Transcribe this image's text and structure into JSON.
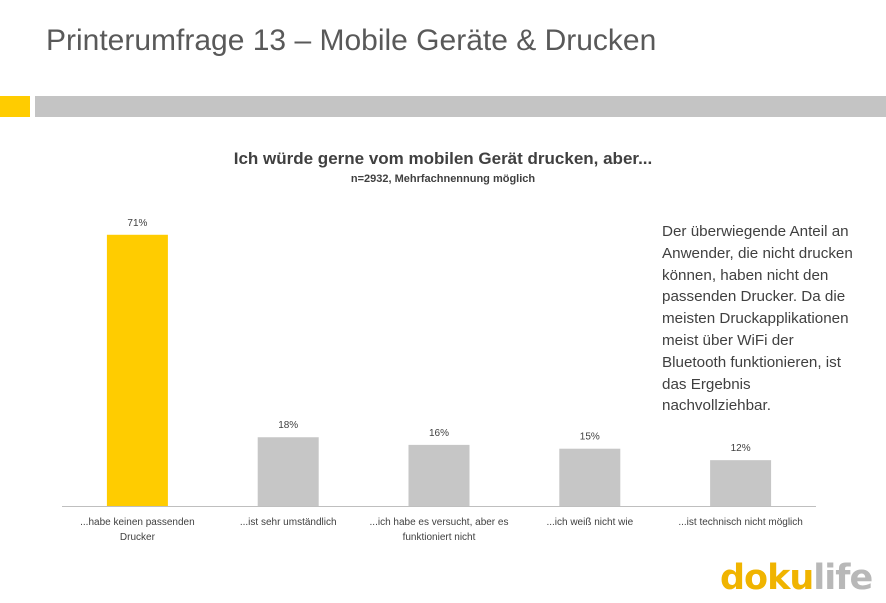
{
  "page": {
    "title": "Printerumfrage 13 – Mobile Geräte & Drucken",
    "note": "Der überwiegende Anteil an Anwender, die nicht drucken können, haben nicht den passenden Drucker. Da die meisten Druckapplikationen meist über WiFi der Bluetooth funktionieren, ist das Ergebnis nachvollziehbar.",
    "logo": {
      "part1": "doku",
      "part2": "life"
    }
  },
  "colors": {
    "accent": "#ffcc00",
    "bar_default": "#c6c6c6",
    "bar_highlight": "#ffcc00",
    "header_bar": "#c4c4c4"
  },
  "chart_data": {
    "type": "bar",
    "title": "Ich würde gerne vom mobilen Gerät drucken, aber...",
    "subtitle": "n=2932, Mehrfachnennung möglich",
    "categories": [
      [
        "...habe keinen passenden",
        "Drucker"
      ],
      [
        "...ist sehr umständlich"
      ],
      [
        "...ich habe es versucht, aber es",
        "funktioniert nicht"
      ],
      [
        "...ich weiß nicht wie"
      ],
      [
        "...ist technisch nicht möglich"
      ]
    ],
    "values": [
      71,
      18,
      16,
      15,
      12
    ],
    "data_labels": [
      "71%",
      "18%",
      "16%",
      "15%",
      "12%"
    ],
    "highlight_index": 0,
    "ylim": [
      0,
      100
    ],
    "grid": false,
    "legend": "none"
  }
}
